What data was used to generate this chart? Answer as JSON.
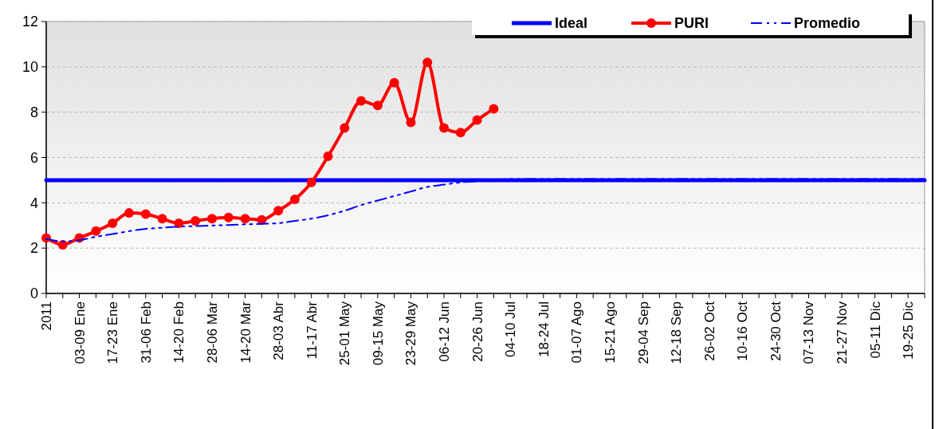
{
  "chart_data": {
    "type": "line",
    "categories": [
      "2011",
      null,
      "03-09 Ene",
      null,
      "17-23 Ene",
      null,
      "31-06 Feb",
      null,
      "14-20 Feb",
      null,
      "28-06 Mar",
      null,
      "14-20 Mar",
      null,
      "28-03 Abr",
      null,
      "11-17 Abr",
      null,
      "25-01 May",
      null,
      "09-15 May",
      null,
      "23-29 May",
      null,
      "06-12 Jun",
      null,
      "20-26 Jun",
      null,
      "04-10 Jul",
      null,
      "18-24 Jul",
      null,
      "01-07 Ago",
      null,
      "15-21 Ago",
      null,
      "29-04 Sep",
      null,
      "12-18 Sep",
      null,
      "26-02 Oct",
      null,
      "10-16 Oct",
      null,
      "24-30 Oct",
      null,
      "07-13 Nov",
      null,
      "21-27 Nov",
      null,
      "05-11 Dic",
      null,
      "19-25 Dic",
      null
    ],
    "series": [
      {
        "name": "Ideal",
        "color": "#0000ff",
        "line_style": "solid",
        "marker": "none",
        "values": [
          5,
          5,
          5,
          5,
          5,
          5,
          5,
          5,
          5,
          5,
          5,
          5,
          5,
          5,
          5,
          5,
          5,
          5,
          5,
          5,
          5,
          5,
          5,
          5,
          5,
          5,
          5,
          5,
          5,
          5,
          5,
          5,
          5,
          5,
          5,
          5,
          5,
          5,
          5,
          5,
          5,
          5,
          5,
          5,
          5,
          5,
          5,
          5,
          5,
          5,
          5,
          5,
          5,
          5
        ]
      },
      {
        "name": "PURI",
        "color": "#ff0000",
        "line_style": "solid",
        "marker": "circle",
        "values": [
          2.45,
          2.15,
          2.45,
          2.75,
          3.1,
          3.55,
          3.5,
          3.3,
          3.1,
          3.2,
          3.3,
          3.35,
          3.3,
          3.25,
          3.65,
          4.15,
          4.9,
          6.05,
          7.3,
          8.5,
          8.3,
          9.3,
          7.55,
          10.2,
          7.3,
          7.1,
          7.65,
          8.15,
          null,
          null,
          null,
          null,
          null,
          null,
          null,
          null,
          null,
          null,
          null,
          null,
          null,
          null,
          null,
          null,
          null,
          null,
          null,
          null,
          null,
          null,
          null,
          null,
          null,
          null
        ]
      },
      {
        "name": "Promedio",
        "color": "#0000ff",
        "line_style": "dashed",
        "marker": "none",
        "values": [
          2.4,
          2.3,
          2.35,
          2.5,
          2.62,
          2.75,
          2.85,
          2.9,
          2.95,
          2.97,
          3.0,
          3.02,
          3.05,
          3.07,
          3.1,
          3.2,
          3.3,
          3.45,
          3.65,
          3.9,
          4.1,
          4.3,
          4.5,
          4.7,
          4.8,
          4.9,
          4.95,
          5.0,
          5.05,
          5.05,
          5.05,
          5.05,
          5.05,
          5.05,
          5.05,
          5.05,
          5.05,
          5.05,
          5.05,
          5.05,
          5.05,
          5.05,
          5.05,
          5.05,
          5.05,
          5.05,
          5.05,
          5.05,
          5.05,
          5.05,
          5.05,
          5.05,
          5.05,
          5.05
        ]
      }
    ],
    "ylim": [
      0,
      12
    ],
    "yticks": [
      0,
      2,
      4,
      6,
      8,
      10,
      12
    ],
    "grid": "y",
    "legend": "top right"
  }
}
